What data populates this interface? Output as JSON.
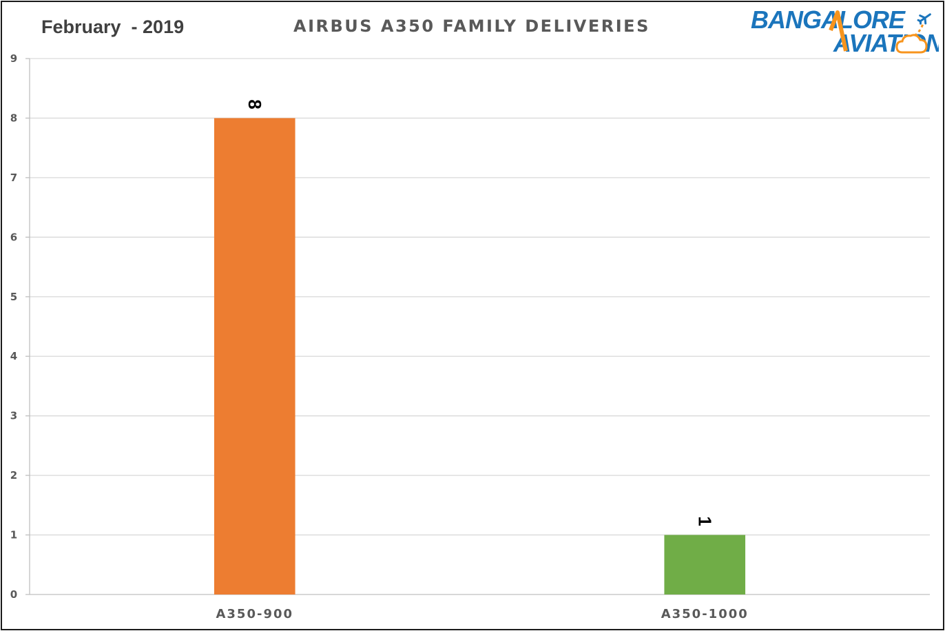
{
  "header": {
    "period": "February  - 2019",
    "title": "AIRBUS A350 FAMILY DELIVERIES"
  },
  "logo": {
    "line1": "BANGALORE",
    "line2": "AVIATION",
    "colors": {
      "orange": "#F7941D",
      "blue": "#1B75BC"
    }
  },
  "chart_data": {
    "type": "bar",
    "title": "AIRBUS A350 FAMILY DELIVERIES",
    "subtitle": "February  - 2019",
    "xlabel": "",
    "ylabel": "",
    "categories": [
      "A350-900",
      "A350-1000"
    ],
    "values": [
      8,
      1
    ],
    "data_labels": [
      "8",
      "1"
    ],
    "bar_colors": [
      "#ED7D31",
      "#70AD47"
    ],
    "ylim": [
      0,
      9
    ],
    "yticks": [
      0,
      1,
      2,
      3,
      4,
      5,
      6,
      7,
      8,
      9
    ],
    "grid": true,
    "data_label_rotation": "90deg"
  }
}
